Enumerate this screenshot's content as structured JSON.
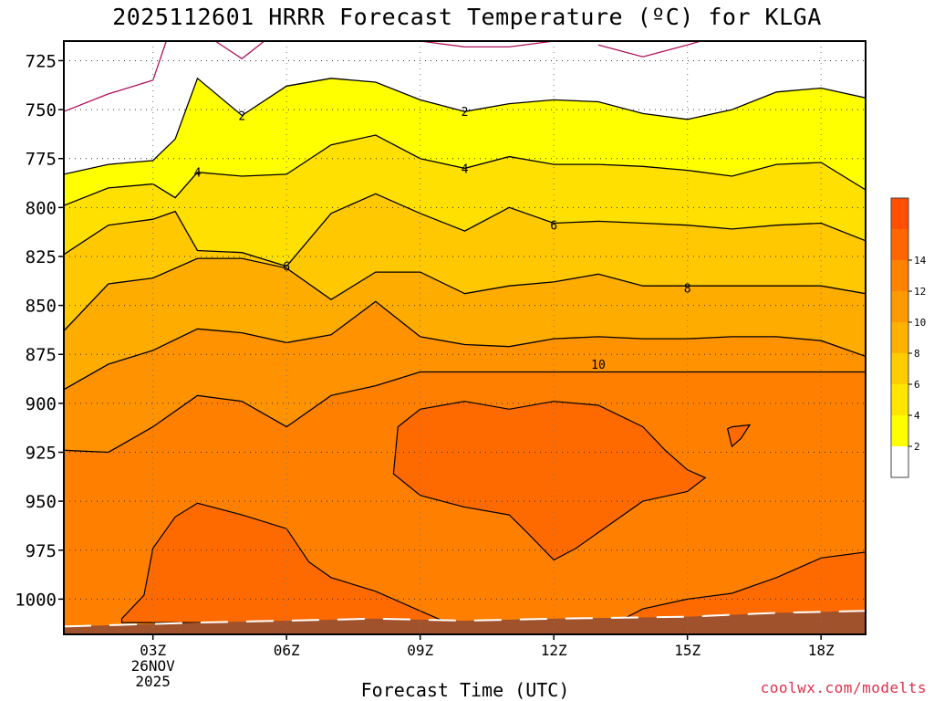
{
  "title": "2025112601 HRRR Forecast Temperature (ºC) for KLGA",
  "xlabel": "Forecast Time (UTC)",
  "credit": "coolwx.com/modelts",
  "chart_data": {
    "type": "contour",
    "title": "2025112601 HRRR Forecast Temperature (ºC) for KLGA",
    "xlabel": "Forecast Time (UTC)",
    "ylabel": "",
    "x_ticks": [
      {
        "hour": 3,
        "label": "03Z",
        "date": "26NOV",
        "year": "2025"
      },
      {
        "hour": 6,
        "label": "06Z"
      },
      {
        "hour": 9,
        "label": "09Z"
      },
      {
        "hour": 12,
        "label": "12Z"
      },
      {
        "hour": 15,
        "label": "15Z"
      },
      {
        "hour": 18,
        "label": "18Z"
      }
    ],
    "xlim": [
      1,
      19
    ],
    "y_ticks": [
      725,
      750,
      775,
      800,
      825,
      850,
      875,
      900,
      925,
      950,
      975,
      1000
    ],
    "ylim_hpa": [
      1018,
      715
    ],
    "grid": "dotted",
    "colorbar": {
      "labels": [
        "2",
        "4",
        "6",
        "8",
        "10",
        "12",
        "14"
      ],
      "colors": [
        "#ffffff",
        "#ffff00",
        "#ffe600",
        "#ffcc00",
        "#ffb100",
        "#ff9900",
        "#ff8200",
        "#ff6600",
        "#ff4f00"
      ]
    },
    "contour_levels": [
      0,
      2,
      4,
      6,
      8,
      10,
      12
    ],
    "fill_colors": [
      "#ffffff",
      "#ffff00",
      "#ffe000",
      "#ffc800",
      "#ffac00",
      "#ff9200",
      "#ff8000",
      "#ff6a00"
    ],
    "line_color": "#000000",
    "zero_line_color": "#b0105a",
    "ground_color": "#a0522d",
    "contour_labels": [
      {
        "text": "2",
        "x": 5.0,
        "p": 753
      },
      {
        "text": "2",
        "x": 10.0,
        "p": 751
      },
      {
        "text": "4",
        "x": 4.0,
        "p": 782
      },
      {
        "text": "4",
        "x": 10.0,
        "p": 780
      },
      {
        "text": "6",
        "x": 6.0,
        "p": 830
      },
      {
        "text": "6",
        "x": 12.0,
        "p": 809
      },
      {
        "text": "8",
        "x": 15.0,
        "p": 841
      },
      {
        "text": "10",
        "x": 13.0,
        "p": 880
      }
    ],
    "contours": [
      {
        "level": 0,
        "points": [
          [
            1,
            751
          ],
          [
            2,
            742
          ],
          [
            3,
            735
          ],
          [
            3.3,
            715
          ]
        ]
      },
      {
        "level": 0,
        "points": [
          [
            4.4,
            715
          ],
          [
            5.0,
            724
          ],
          [
            5.5,
            715
          ]
        ]
      },
      {
        "level": 0,
        "points": [
          [
            9.0,
            715
          ],
          [
            10.0,
            718
          ],
          [
            11.0,
            718
          ],
          [
            12.0,
            715
          ]
        ]
      },
      {
        "level": 0,
        "points": [
          [
            13.0,
            717
          ],
          [
            14.0,
            723
          ],
          [
            15.0,
            717
          ],
          [
            15.3,
            715
          ]
        ]
      },
      {
        "level": 2,
        "points": [
          [
            1,
            783
          ],
          [
            2,
            778
          ],
          [
            3,
            776
          ],
          [
            3.5,
            765
          ],
          [
            4.0,
            734
          ],
          [
            5.0,
            753
          ],
          [
            6.0,
            738
          ],
          [
            7.0,
            734
          ],
          [
            8.0,
            736
          ],
          [
            9.0,
            745
          ],
          [
            10.0,
            751
          ],
          [
            11.0,
            747
          ],
          [
            12.0,
            745
          ],
          [
            13.0,
            746
          ],
          [
            14.0,
            752
          ],
          [
            15.0,
            755
          ],
          [
            16.0,
            750
          ],
          [
            17.0,
            741
          ],
          [
            18.0,
            739
          ],
          [
            19.0,
            744
          ]
        ]
      },
      {
        "level": 4,
        "points": [
          [
            1,
            799
          ],
          [
            2,
            790
          ],
          [
            3,
            788
          ],
          [
            3.5,
            795
          ],
          [
            4.0,
            782
          ],
          [
            5.0,
            784
          ],
          [
            6.0,
            783
          ],
          [
            7.0,
            768
          ],
          [
            8.0,
            763
          ],
          [
            9.0,
            775
          ],
          [
            10.0,
            780
          ],
          [
            11.0,
            774
          ],
          [
            12.0,
            778
          ],
          [
            13.0,
            778
          ],
          [
            14.0,
            779
          ],
          [
            15.0,
            781
          ],
          [
            16.0,
            784
          ],
          [
            17.0,
            778
          ],
          [
            18.0,
            777
          ],
          [
            19.0,
            791
          ]
        ]
      },
      {
        "level": 6,
        "points": [
          [
            1,
            824
          ],
          [
            2,
            809
          ],
          [
            3,
            806
          ],
          [
            3.5,
            802
          ],
          [
            4.0,
            822
          ],
          [
            5.0,
            823
          ],
          [
            6.0,
            830
          ],
          [
            7.0,
            803
          ],
          [
            8.0,
            793
          ],
          [
            9.0,
            803
          ],
          [
            10.0,
            812
          ],
          [
            11.0,
            800
          ],
          [
            12.0,
            808
          ],
          [
            13.0,
            807
          ],
          [
            14.0,
            808
          ],
          [
            15.0,
            809
          ],
          [
            16.0,
            811
          ],
          [
            17.0,
            809
          ],
          [
            18.0,
            808
          ],
          [
            19.0,
            817
          ]
        ]
      },
      {
        "level": 8,
        "points": [
          [
            1,
            863
          ],
          [
            2,
            839
          ],
          [
            3,
            836
          ],
          [
            4.0,
            826
          ],
          [
            5.0,
            826
          ],
          [
            6.0,
            831
          ],
          [
            7.0,
            847
          ],
          [
            8.0,
            833
          ],
          [
            9.0,
            833
          ],
          [
            10.0,
            844
          ],
          [
            11.0,
            840
          ],
          [
            12.0,
            838
          ],
          [
            13.0,
            834
          ],
          [
            14.0,
            840
          ],
          [
            15.0,
            840
          ],
          [
            16.0,
            840
          ],
          [
            17.0,
            840
          ],
          [
            18.0,
            840
          ],
          [
            19.0,
            844
          ]
        ]
      },
      {
        "level": 10,
        "points": [
          [
            1,
            893
          ],
          [
            2,
            880
          ],
          [
            3,
            873
          ],
          [
            4.0,
            862
          ],
          [
            5.0,
            864
          ],
          [
            6.0,
            869
          ],
          [
            7.0,
            865
          ],
          [
            8.0,
            848
          ],
          [
            9.0,
            866
          ],
          [
            10.0,
            870
          ],
          [
            11.0,
            871
          ],
          [
            12.0,
            867
          ],
          [
            13.0,
            866
          ],
          [
            14.0,
            867
          ],
          [
            15.0,
            867
          ],
          [
            16.0,
            866
          ],
          [
            17.0,
            866
          ],
          [
            18.0,
            868
          ],
          [
            19.0,
            876
          ]
        ]
      },
      {
        "level": 12,
        "points": [
          [
            1,
            924
          ],
          [
            2,
            925
          ],
          [
            3,
            912
          ],
          [
            4.0,
            896
          ],
          [
            5.0,
            899
          ],
          [
            6.0,
            912
          ],
          [
            7.0,
            896
          ],
          [
            8.0,
            891
          ],
          [
            9.0,
            884
          ],
          [
            10.0,
            884
          ],
          [
            11.0,
            884
          ],
          [
            12.0,
            884
          ],
          [
            13.0,
            884
          ],
          [
            14.0,
            884
          ],
          [
            15.0,
            884
          ],
          [
            16.0,
            884
          ],
          [
            17.0,
            884
          ],
          [
            18.0,
            884
          ],
          [
            19.0,
            884
          ]
        ]
      }
    ],
    "warm_cores": [
      {
        "level": 14,
        "points": [
          [
            8.4,
            936
          ],
          [
            9.0,
            947
          ],
          [
            10.0,
            953
          ],
          [
            11.0,
            957
          ],
          [
            11.4,
            966
          ],
          [
            12.0,
            980
          ],
          [
            12.5,
            974
          ],
          [
            13.0,
            966
          ],
          [
            14.0,
            950
          ],
          [
            15.0,
            945
          ],
          [
            15.4,
            938
          ],
          [
            15.0,
            934
          ],
          [
            14.5,
            924
          ],
          [
            14.0,
            912
          ],
          [
            13.0,
            901
          ],
          [
            12.0,
            899
          ],
          [
            11.0,
            903
          ],
          [
            10.0,
            899
          ],
          [
            9.0,
            903
          ],
          [
            8.5,
            912
          ],
          [
            8.4,
            936
          ]
        ]
      },
      {
        "level": 14,
        "points": [
          [
            16.0,
            912
          ],
          [
            16.4,
            911
          ],
          [
            16.2,
            918
          ],
          [
            16.0,
            922
          ],
          [
            15.9,
            913
          ],
          [
            16.0,
            912
          ]
        ]
      },
      {
        "level": 14,
        "points": [
          [
            2.3,
            1010
          ],
          [
            2.8,
            998
          ],
          [
            3.0,
            974
          ],
          [
            3.5,
            958
          ],
          [
            4.0,
            951
          ],
          [
            5.0,
            957
          ],
          [
            6.0,
            964
          ],
          [
            6.5,
            981
          ],
          [
            7.0,
            989
          ],
          [
            8.0,
            996
          ],
          [
            9.0,
            1006
          ],
          [
            9.6,
            1012
          ],
          [
            2.3,
            1012
          ]
        ]
      },
      {
        "level": 14,
        "points": [
          [
            13.4,
            1012
          ],
          [
            14.0,
            1005
          ],
          [
            15.0,
            1000
          ],
          [
            16.0,
            997
          ],
          [
            17.0,
            989
          ],
          [
            18.0,
            979
          ],
          [
            19.0,
            976
          ],
          [
            19.0,
            1012
          ]
        ]
      }
    ],
    "ground": [
      [
        1,
        1014
      ],
      [
        4,
        1012
      ],
      [
        8,
        1010
      ],
      [
        10,
        1011
      ],
      [
        12,
        1010
      ],
      [
        15,
        1009
      ],
      [
        17,
        1007
      ],
      [
        19,
        1006
      ]
    ]
  }
}
